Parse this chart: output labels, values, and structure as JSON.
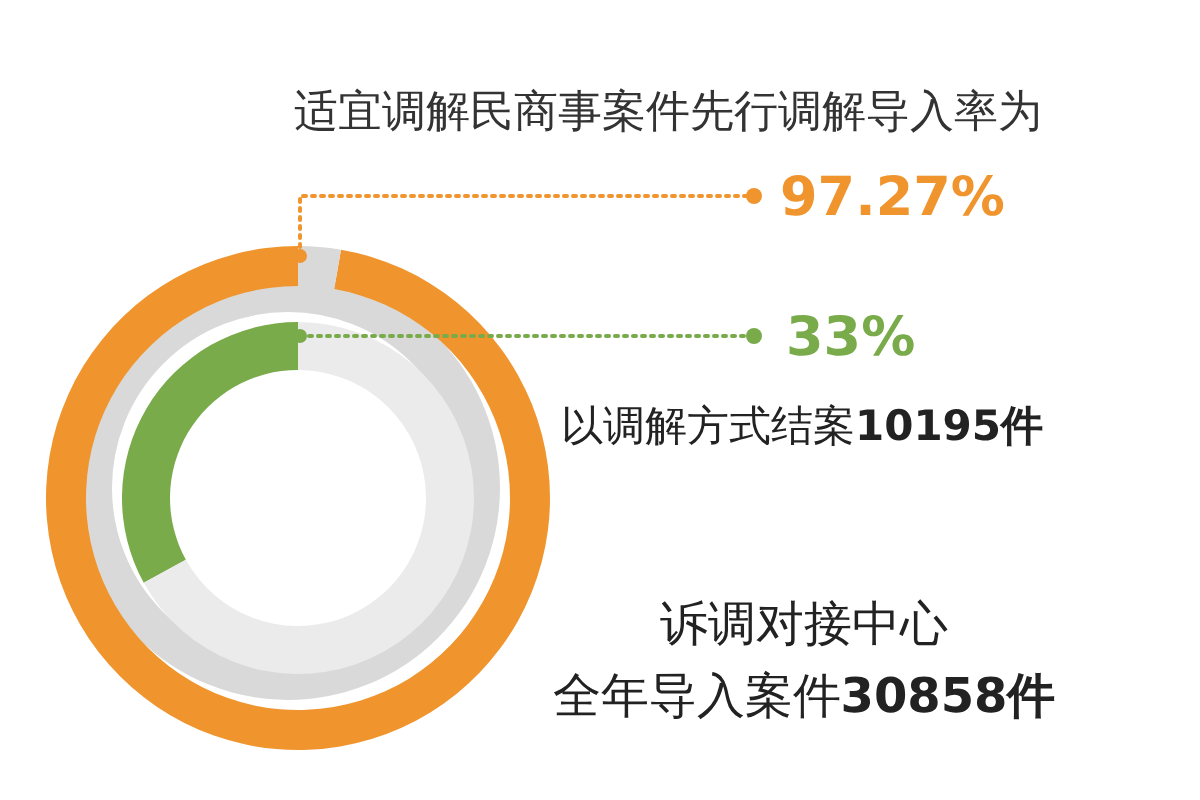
{
  "chart_data": [
    {
      "type": "donut",
      "title": "适宜调解民商事案件先行调解导入率为",
      "categories": [
        null,
        null
      ],
      "values": [
        97.27,
        2.73
      ],
      "colors": [
        "#f0952e",
        "#d9d9d9"
      ],
      "value_labels": [
        "97.27%",
        null
      ],
      "annotations": [
        "诉调对接中心",
        "全年导入案件30858件"
      ]
    },
    {
      "type": "donut",
      "categories": [
        null,
        null
      ],
      "values": [
        33,
        67
      ],
      "colors": [
        "#79ab4b",
        "#ebebeb"
      ],
      "value_labels": [
        "33%",
        null
      ],
      "annotations": [
        "以调解方式结案10195件"
      ]
    }
  ]
}
